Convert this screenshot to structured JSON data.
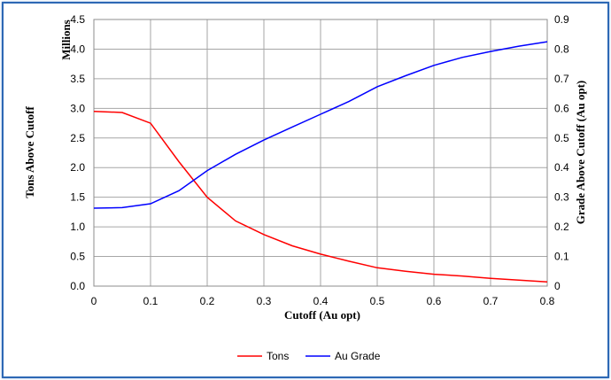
{
  "chart_data": {
    "type": "line",
    "xlabel": "Cutoff (Au opt)",
    "ylabel_left": "Tons Above Cutoff",
    "ylabel_left_unit": "Millions",
    "ylabel_right": "Grade Above Cutoff (Au opt)",
    "xlim": [
      0,
      0.8
    ],
    "ylim_left": [
      0,
      4.5
    ],
    "ylim_right": [
      0,
      0.9
    ],
    "x_ticks": [
      "0",
      "0.1",
      "0.2",
      "0.3",
      "0.4",
      "0.5",
      "0.6",
      "0.7",
      "0.8"
    ],
    "y_left_ticks": [
      "0.0",
      "0.5",
      "1.0",
      "1.5",
      "2.0",
      "2.5",
      "3.0",
      "3.5",
      "4.0",
      "4.5"
    ],
    "y_right_ticks": [
      "0",
      "0.1",
      "0.2",
      "0.3",
      "0.4",
      "0.5",
      "0.6",
      "0.7",
      "0.8",
      "0.9"
    ],
    "grid": true,
    "legend_position": "bottom",
    "series": [
      {
        "name": "Tons",
        "axis": "left",
        "color": "#ff0000",
        "x": [
          0,
          0.05,
          0.1,
          0.15,
          0.2,
          0.25,
          0.3,
          0.35,
          0.4,
          0.45,
          0.5,
          0.55,
          0.6,
          0.65,
          0.7,
          0.75,
          0.8
        ],
        "y": [
          2.95,
          2.93,
          2.75,
          2.1,
          1.5,
          1.1,
          0.87,
          0.68,
          0.54,
          0.42,
          0.31,
          0.25,
          0.2,
          0.17,
          0.13,
          0.1,
          0.07
        ]
      },
      {
        "name": "Au Grade",
        "axis": "right",
        "color": "#0000ff",
        "x": [
          0,
          0.05,
          0.1,
          0.15,
          0.2,
          0.25,
          0.3,
          0.35,
          0.4,
          0.45,
          0.5,
          0.55,
          0.6,
          0.65,
          0.7,
          0.75,
          0.8
        ],
        "y": [
          0.263,
          0.265,
          0.278,
          0.322,
          0.39,
          0.445,
          0.493,
          0.537,
          0.58,
          0.623,
          0.673,
          0.71,
          0.745,
          0.772,
          0.792,
          0.81,
          0.825
        ]
      }
    ]
  }
}
